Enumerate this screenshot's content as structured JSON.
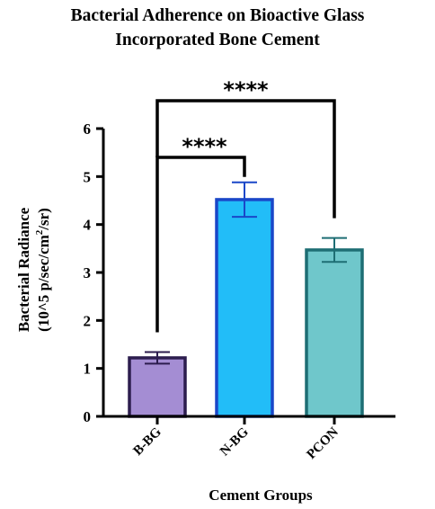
{
  "chart_data": {
    "type": "bar",
    "title_lines": [
      "Bacterial Adherence on Bioactive Glass",
      "Incorporated Bone Cement"
    ],
    "xlabel": "Cement Groups",
    "ylabel_line1": "Bacterial Radiance",
    "ylabel_line2_pre": "(10^5 p/sec/cm",
    "ylabel_line2_sup": "2",
    "ylabel_line2_post": "/sr)",
    "categories": [
      "B-BG",
      "N-BG",
      "PCON"
    ],
    "values": [
      1.22,
      4.52,
      3.47
    ],
    "error": [
      0.12,
      0.36,
      0.25
    ],
    "ylim": [
      0,
      6
    ],
    "yticks": [
      "0",
      "1",
      "2",
      "3",
      "4",
      "5",
      "6"
    ],
    "grid": false,
    "significance": [
      {
        "from": "B-BG",
        "to": "N-BG",
        "label": "****"
      },
      {
        "from": "B-BG",
        "to": "PCON",
        "label": "****"
      }
    ],
    "colors": {
      "fills": [
        "#a48dd3",
        "#22bdf8",
        "#6fc7cb"
      ],
      "strokes": [
        "#2c1d4e",
        "#1a47c8",
        "#1e6e74"
      ],
      "errors": [
        "#2c1d4e",
        "#1a47c8",
        "#1e6e74"
      ],
      "axis": "#000000"
    }
  }
}
